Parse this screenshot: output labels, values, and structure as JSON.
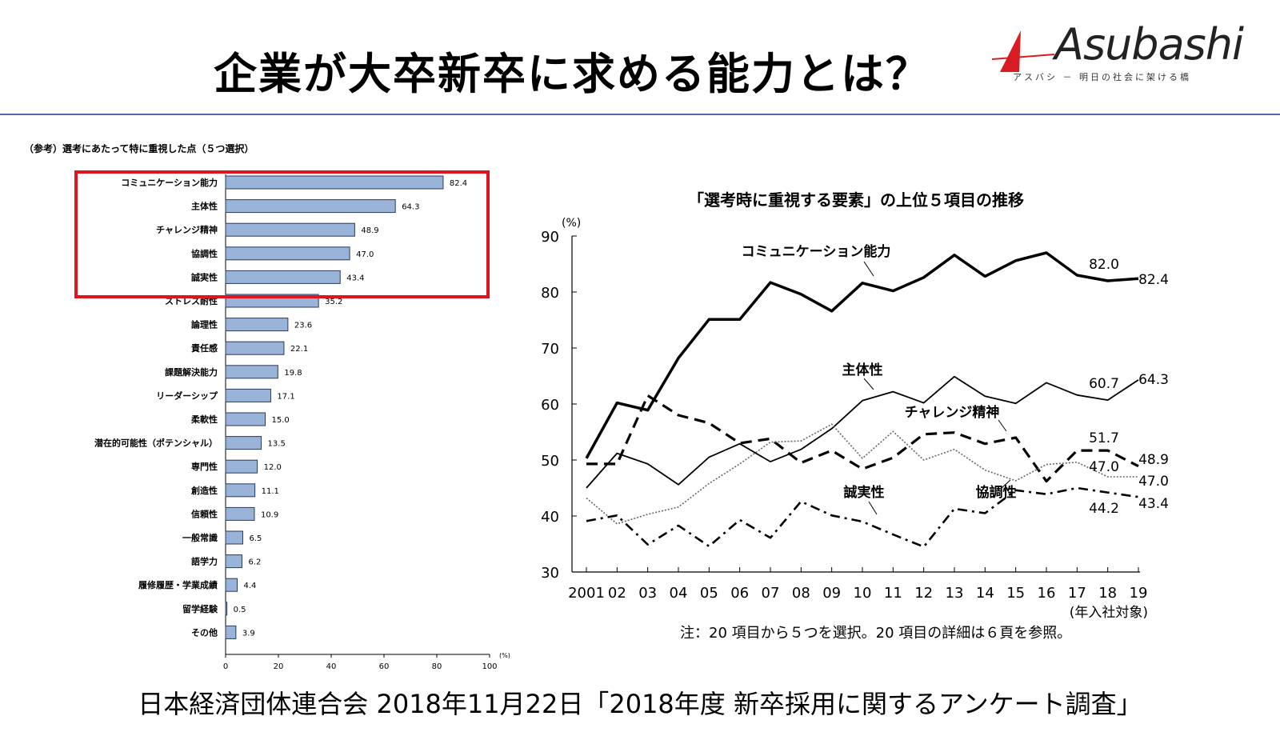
{
  "header": {
    "title": "企業が大卒新卒に求める能力とは？",
    "logo_text": "Asubashi",
    "logo_sub": "アスバシ － 明日の社会に架ける橋"
  },
  "footer": {
    "source": "日本経済団体連合会 2018年11月22日「2018年度 新卒採用に関するアンケート調査」"
  },
  "colors": {
    "bar_fill": "#9ab3d8",
    "bar_stroke": "#2a3a5a",
    "highlight_box": "#e0141e",
    "rule": "#5566aa",
    "logo_red": "#d81c22"
  },
  "chart_data": [
    {
      "type": "bar",
      "orientation": "horizontal",
      "title": "（参考）選考にあたって特に重視した点（５つ選択）",
      "unit_label": "(%)",
      "xlim": [
        0,
        100
      ],
      "xticks": [
        "0",
        "20",
        "40",
        "60",
        "80",
        "100"
      ],
      "highlight_top_n": 5,
      "categories": [
        "コミュニケーション能力",
        "主体性",
        "チャレンジ精神",
        "協調性",
        "誠実性",
        "ストレス耐性",
        "論理性",
        "責任感",
        "課題解決能力",
        "リーダーシップ",
        "柔軟性",
        "潜在的可能性（ポテンシャル）",
        "専門性",
        "創造性",
        "信頼性",
        "一般常識",
        "語学力",
        "履修履歴・学業成績",
        "留学経験",
        "その他"
      ],
      "values": [
        82.4,
        64.3,
        48.9,
        47.0,
        43.4,
        35.2,
        23.6,
        22.1,
        19.8,
        17.1,
        15.0,
        13.5,
        12.0,
        11.1,
        10.9,
        6.5,
        6.2,
        4.4,
        0.5,
        3.9
      ],
      "value_labels": [
        "82.4",
        "64.3",
        "48.9",
        "47.0",
        "43.4",
        "35.2",
        "23.6",
        "22.1",
        "19.8",
        "17.1",
        "15.0",
        "13.5",
        "12.0",
        "11.1",
        "10.9",
        "6.5",
        "6.2",
        "4.4",
        "0.5",
        "3.9"
      ]
    },
    {
      "type": "line",
      "title": "「選考時に重視する要素」の上位５項目の推移",
      "ylabel": "(%)",
      "xlabel": "(年入社対象)",
      "ylim": [
        30,
        90
      ],
      "yticks": [
        "30",
        "40",
        "50",
        "60",
        "70",
        "80",
        "90"
      ],
      "x": [
        "2001",
        "02",
        "03",
        "04",
        "05",
        "06",
        "07",
        "08",
        "09",
        "10",
        "11",
        "12",
        "13",
        "14",
        "15",
        "16",
        "17",
        "18",
        "19"
      ],
      "note": "注：20 項目から５つを選択。20 項目の詳細は６頁を参照。",
      "series": [
        {
          "name": "コミュニケーション能力",
          "style": "solid-thick",
          "values": [
            50.3,
            60.2,
            58.9,
            68.2,
            75.1,
            75.1,
            81.7,
            79.6,
            76.6,
            81.6,
            80.2,
            82.6,
            86.6,
            82.8,
            85.6,
            87.0,
            83.0,
            82.0,
            82.4
          ]
        },
        {
          "name": "主体性",
          "style": "solid-thin",
          "values": [
            45.0,
            51.2,
            49.3,
            45.6,
            50.5,
            52.9,
            49.7,
            51.9,
            55.6,
            60.6,
            62.2,
            60.2,
            64.9,
            61.4,
            60.1,
            63.8,
            61.6,
            60.7,
            64.3
          ]
        },
        {
          "name": "チャレンジ精神",
          "style": "dashed",
          "values": [
            49.3,
            49.3,
            61.5,
            58.0,
            56.6,
            53.0,
            53.8,
            49.5,
            51.7,
            48.4,
            50.4,
            54.6,
            54.9,
            52.9,
            54.0,
            46.2,
            51.7,
            51.7,
            48.9
          ]
        },
        {
          "name": "協調性",
          "style": "dotted",
          "values": [
            43.2,
            38.6,
            40.3,
            41.6,
            45.8,
            49.3,
            53.2,
            53.4,
            56.4,
            50.3,
            55.1,
            50.0,
            51.9,
            48.2,
            46.3,
            49.2,
            49.6,
            47.0,
            47.0
          ]
        },
        {
          "name": "誠実性",
          "style": "dash-dot",
          "values": [
            39.1,
            40.1,
            34.9,
            38.3,
            34.6,
            39.3,
            36.1,
            42.6,
            40.1,
            39.0,
            36.7,
            34.5,
            41.3,
            40.5,
            44.6,
            43.9,
            45.0,
            44.2,
            43.4
          ]
        }
      ],
      "end_labels": [
        "82.0",
        "82.4",
        "60.7",
        "64.3",
        "51.7",
        "48.9",
        "47.0",
        "47.0",
        "44.2",
        "43.4"
      ]
    }
  ]
}
